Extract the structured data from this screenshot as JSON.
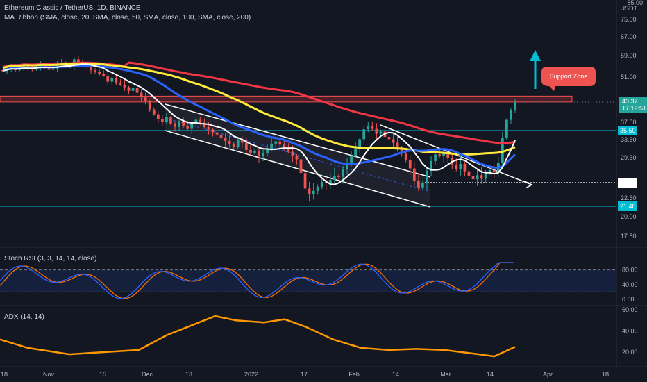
{
  "header": {
    "title": "Ethereum Classic / TetherUS, 1D, BINANCE",
    "ribbon": "MA Ribbon (SMA, close, 20, SMA, close, 50, SMA, close, 100, SMA, close, 200)"
  },
  "axis": {
    "unit": "USDT",
    "price_ticks": [
      "85.00",
      "75.00",
      "67.00",
      "59.00",
      "51.00",
      "43.37",
      "37.50",
      "35.50",
      "33.50",
      "29.50",
      "25.10",
      "22.50",
      "21.48",
      "20.00",
      "17.50"
    ],
    "stoch_ticks": [
      "80.00",
      "40.00",
      "0.00"
    ],
    "adx_ticks": [
      "60.00",
      "40.00",
      "20.00"
    ],
    "x_ticks": [
      "18",
      "Nov",
      "15",
      "Dec",
      "13",
      "2022",
      "17",
      "Feb",
      "14",
      "Mar",
      "14",
      "Apr",
      "18"
    ],
    "countdown": "17:19:51"
  },
  "annotation": {
    "support_zone": "Support Zone"
  },
  "indicators": {
    "stoch_label": "Stoch RSI (3, 3, 14, 14, close)",
    "adx_label": "ADX (14, 14)"
  },
  "colors": {
    "background": "#131722",
    "up": "#26a69a",
    "down": "#ef5350",
    "ma20": "#ffffff",
    "ma50": "#2962ff",
    "ma100": "#ffeb3b",
    "ma200": "#f23645",
    "stoch_k": "#2962ff",
    "stoch_d": "#ff6d00",
    "adx": "#ff9800",
    "level": "#00bcd4"
  },
  "chart_data": {
    "type": "candlestick",
    "symbol": "Ethereum Classic / TetherUS, 1D, BINANCE",
    "unit": "USDT",
    "last_price": 43.37,
    "levels": [
      35.5,
      25.1,
      21.48
    ],
    "support_zone": [
      43.4,
      45.2
    ],
    "y_ticks": [
      85,
      75,
      67,
      59,
      51,
      43.37,
      37.5,
      35.5,
      33.5,
      29.5,
      25.1,
      22.5,
      21.48,
      20,
      17.5
    ],
    "series_close": [
      53.2,
      54.0,
      54.8,
      53.6,
      54.5,
      55.2,
      54.1,
      53.8,
      54.6,
      55.5,
      54.9,
      53.7,
      54.2,
      55.8,
      56.4,
      55.1,
      54.7,
      57.6,
      56.2,
      55.3,
      54.8,
      53.5,
      53.0,
      52.1,
      51.5,
      49.6,
      50.8,
      49.2,
      48.7,
      47.9,
      46.8,
      47.6,
      46.2,
      44.8,
      43.6,
      41.2,
      39.8,
      38.5,
      37.6,
      38.9,
      37.2,
      36.4,
      37.8,
      36.6,
      35.9,
      37.3,
      38.2,
      37.4,
      36.3,
      35.8,
      35.1,
      34.6,
      33.8,
      33.2,
      32.6,
      31.9,
      33.4,
      32.8,
      31.2,
      30.6,
      30.9,
      29.8,
      30.5,
      31.4,
      32.6,
      33.1,
      32.4,
      31.6,
      30.8,
      29.9,
      29.2,
      26.8,
      24.1,
      23.2,
      23.7,
      24.4,
      25.2,
      25.0,
      25.6,
      26.3,
      26.1,
      27.4,
      28.6,
      29.8,
      31.5,
      33.6,
      35.8,
      36.6,
      35.9,
      34.8,
      35.3,
      34.1,
      33.6,
      32.8,
      31.7,
      30.4,
      29.1,
      27.6,
      25.4,
      24.3,
      25.1,
      27.2,
      28.9,
      30.2,
      29.8,
      30.6,
      29.4,
      28.2,
      27.5,
      28.4,
      27.1,
      26.3,
      25.7,
      26.4,
      25.8,
      26.9,
      27.3,
      27.0,
      28.6,
      33.8,
      38.2,
      41.1,
      43.37
    ],
    "stoch_rsi": {
      "k_last": 100,
      "d_last": 99
    },
    "adx_last": 25,
    "x_ticks": [
      "18",
      "Nov",
      "15",
      "Dec",
      "13",
      "2022",
      "17",
      "Feb",
      "14",
      "Mar",
      "14",
      "Apr",
      "18"
    ]
  }
}
